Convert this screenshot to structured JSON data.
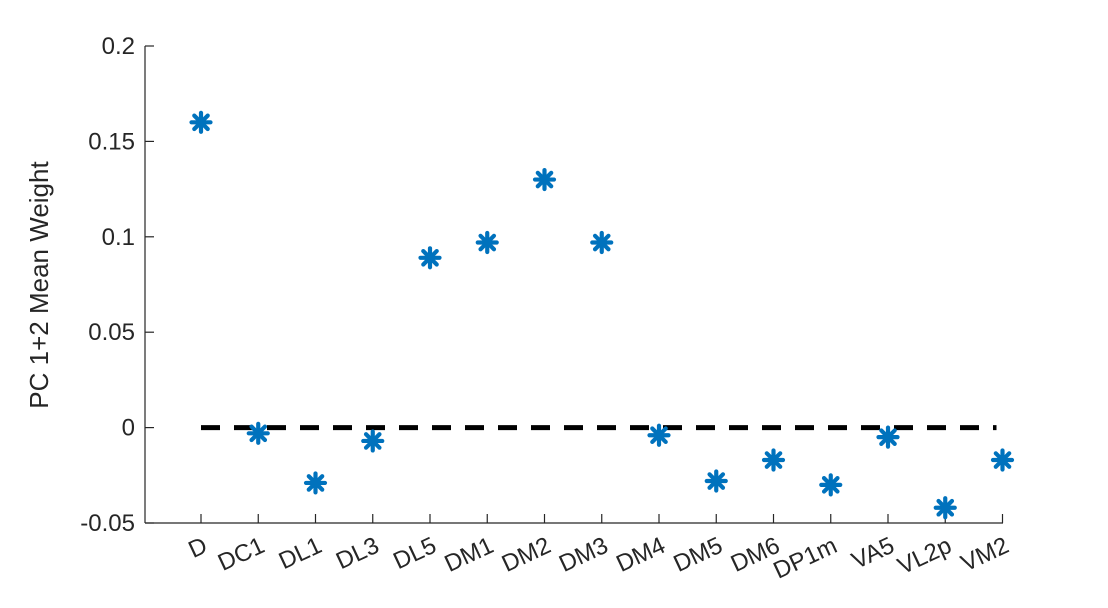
{
  "chart_data": {
    "type": "scatter",
    "title": "",
    "xlabel": "",
    "ylabel": "PC 1+2 Mean Weight",
    "categories": [
      "D",
      "DC1",
      "DL1",
      "DL3",
      "DL5",
      "DM1",
      "DM2",
      "DM3",
      "DM4",
      "DM5",
      "DM6",
      "DP1m",
      "VA5",
      "VL2p",
      "VM2"
    ],
    "series": [
      {
        "values": [
          0.16,
          -0.003,
          -0.029,
          -0.007,
          0.089,
          0.097,
          0.13,
          0.097,
          -0.004,
          -0.028,
          -0.017,
          -0.03,
          -0.005,
          -0.042,
          -0.017
        ],
        "color": "#0072BD",
        "marker": "asterisk"
      }
    ],
    "reference_line": {
      "y": 0,
      "style": "dashed",
      "color": "#000000"
    },
    "ylim": [
      -0.05,
      0.2
    ],
    "yticks": [
      "-0.05",
      "0",
      "0.05",
      "0.1",
      "0.15",
      "0.2"
    ],
    "x_tick_rotation_deg": -25,
    "grid": false
  }
}
